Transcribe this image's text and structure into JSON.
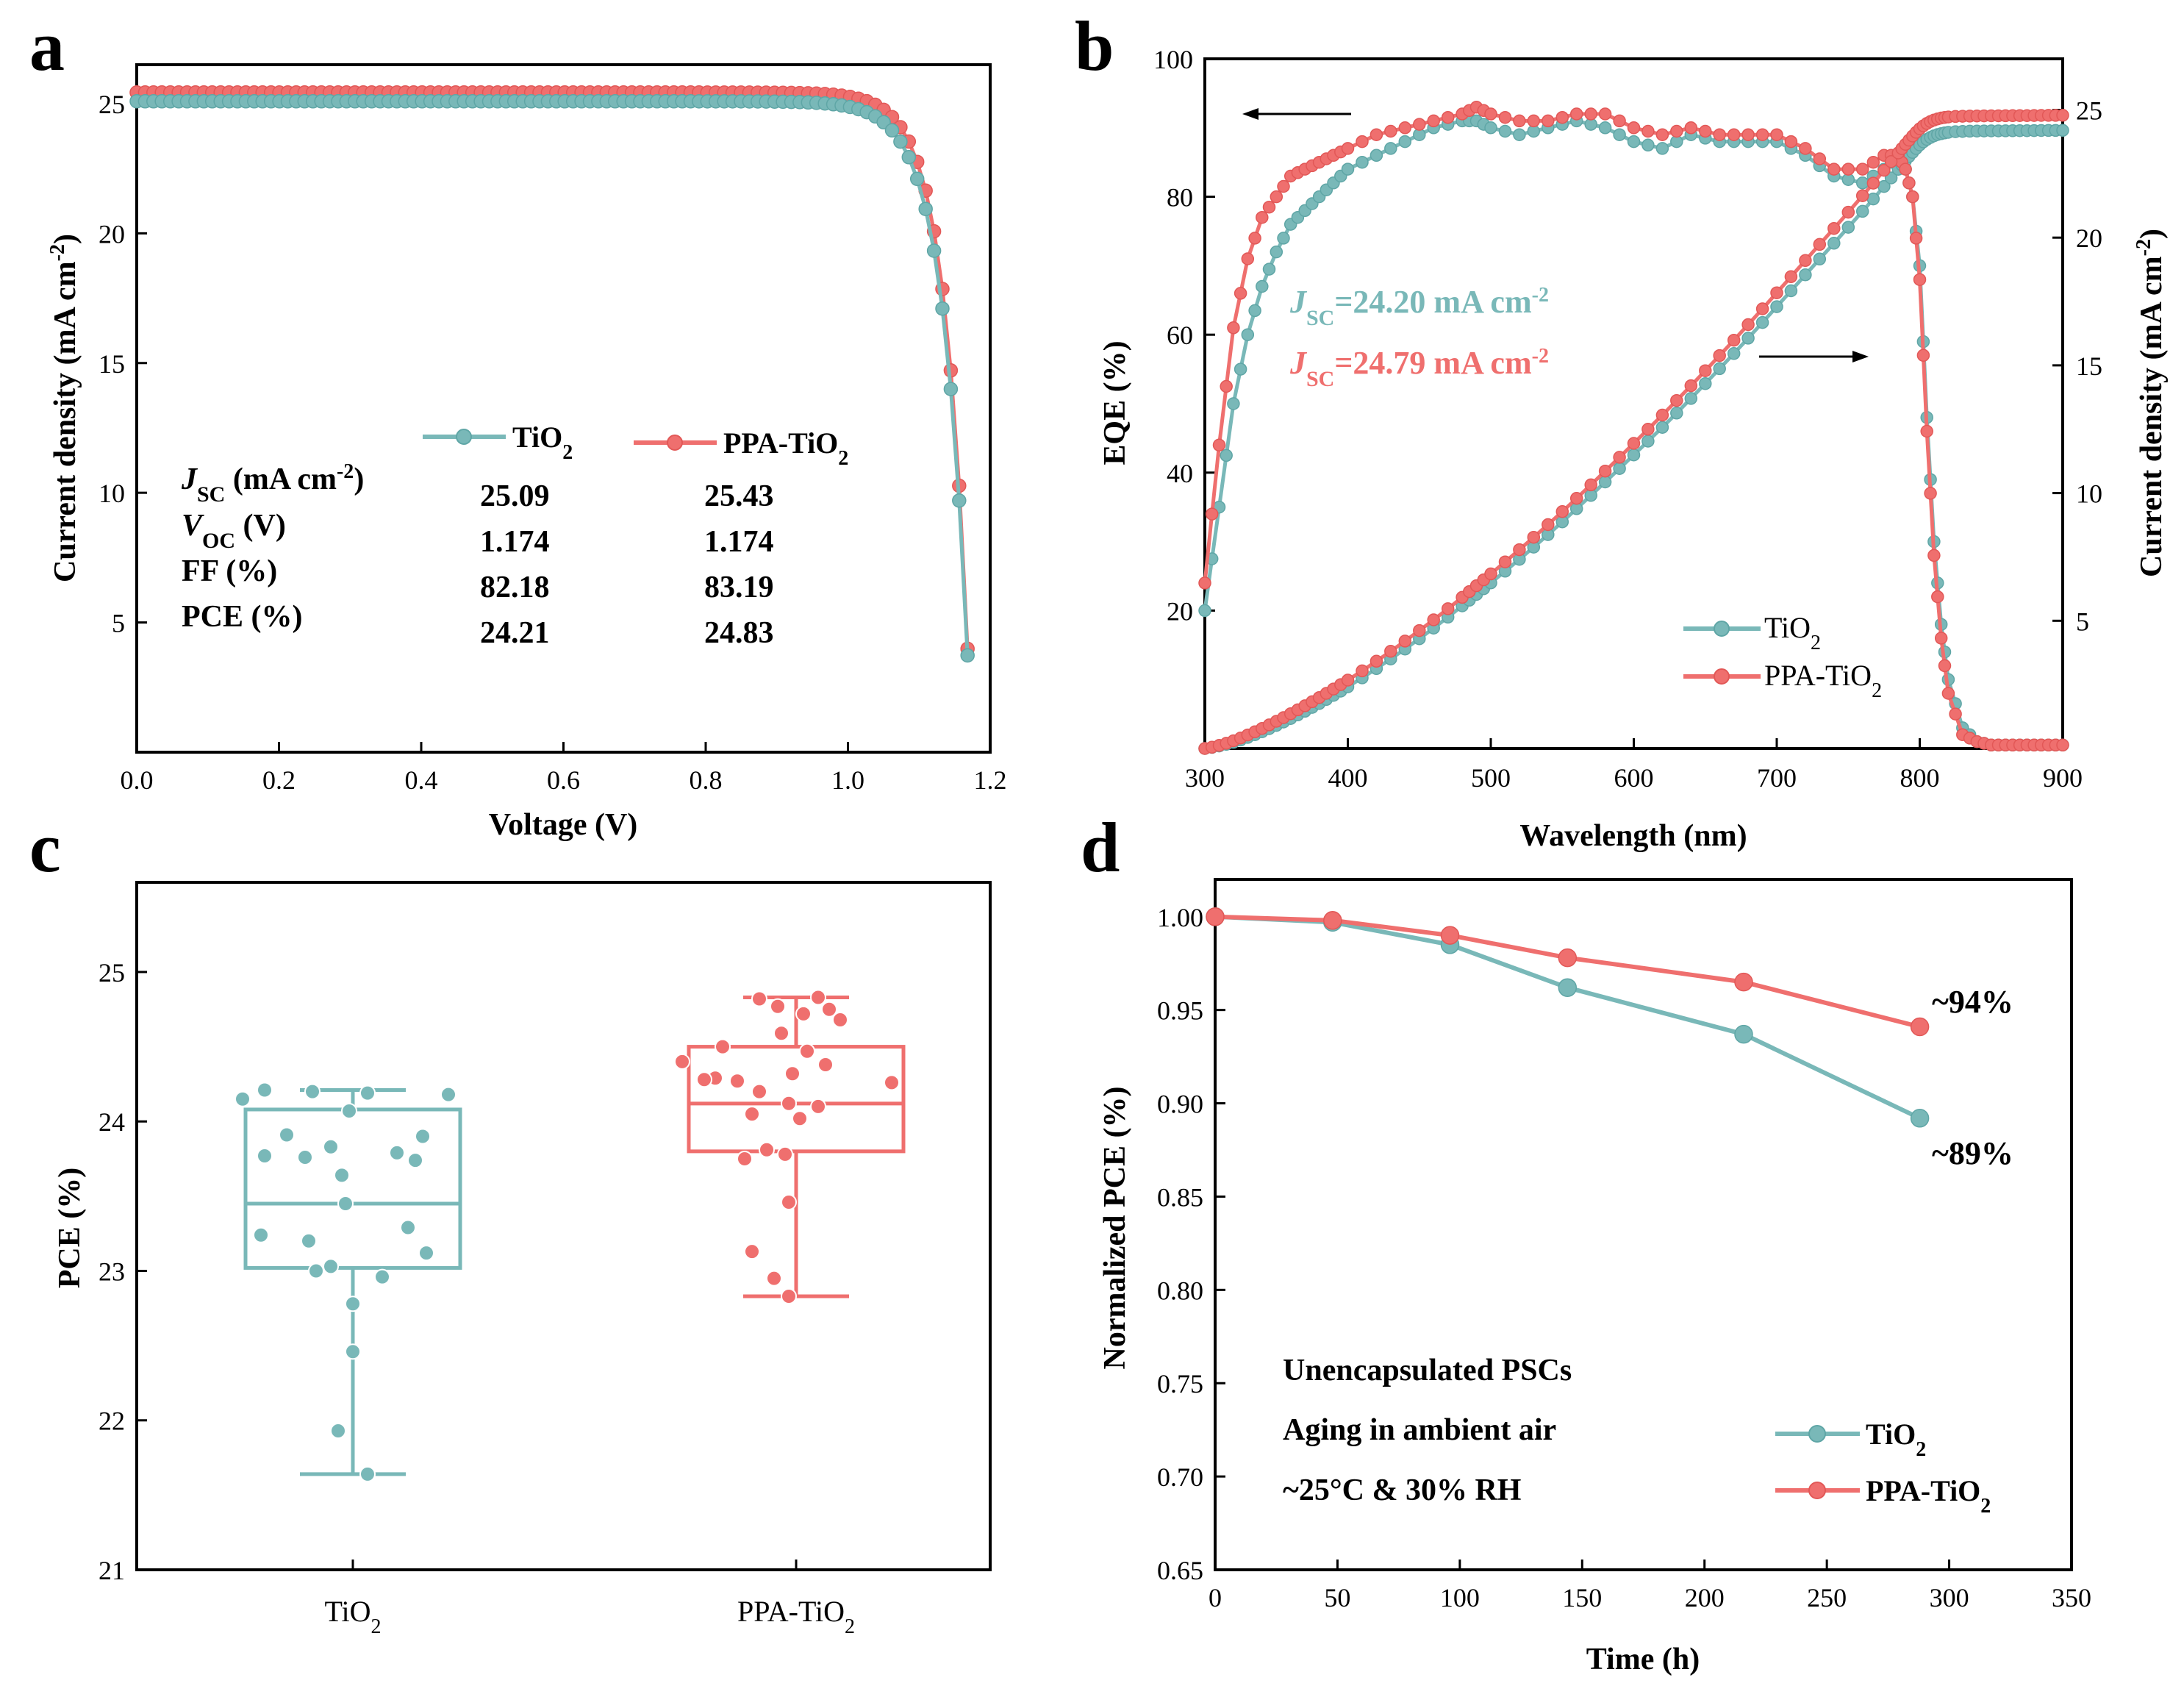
{
  "colors": {
    "tio2": "#79b8b8",
    "ppa": "#ef6f6e",
    "tio2_edge": "#5fa6a6",
    "ppa_edge": "#e25857"
  },
  "panels": {
    "a": "a",
    "b": "b",
    "c": "c",
    "d": "d"
  },
  "chart_data": [
    {
      "panel": "a",
      "type": "line",
      "title": "",
      "xlabel": "Voltage (V)",
      "ylabel": {
        "pre": "Current density (mA cm",
        "sup": "-2",
        "post": ")"
      },
      "xlim": [
        0,
        1.2
      ],
      "ylim": [
        0,
        26.5
      ],
      "xticks": [
        "0.0",
        "0.2",
        "0.4",
        "0.6",
        "0.8",
        "1.0",
        "1.2"
      ],
      "yticks": [
        "5",
        "10",
        "15",
        "20",
        "25"
      ],
      "legend": [
        {
          "text": "TiO",
          "sub": "2"
        },
        {
          "text": "PPA-TiO",
          "sub": "2"
        }
      ],
      "table": {
        "rows": [
          {
            "label": "J",
            "label_sub": "SC",
            "label_post": " (mA cm",
            "label_sup": "-2",
            "label_end": ")",
            "tio2": "25.09",
            "ppa": "25.43"
          },
          {
            "label": "V",
            "label_sub": "OC",
            "label_post": " (V)",
            "label_sup": "",
            "label_end": "",
            "tio2": "1.174",
            "ppa": "1.174"
          },
          {
            "label": "FF (%)",
            "label_sub": "",
            "label_post": "",
            "label_sup": "",
            "label_end": "",
            "tio2": "82.18",
            "ppa": "83.19"
          },
          {
            "label": "PCE (%)",
            "label_sub": "",
            "label_post": "",
            "label_sup": "",
            "label_end": "",
            "tio2": "24.21",
            "ppa": "24.83"
          }
        ]
      },
      "series": [
        {
          "name": "TiO2",
          "jsc": 25.09,
          "voc": 1.174,
          "ff": 82.18
        },
        {
          "name": "PPA-TiO2",
          "jsc": 25.43,
          "voc": 1.174,
          "ff": 83.19
        }
      ]
    },
    {
      "panel": "b",
      "type": "line",
      "xlabel": "Wavelength (nm)",
      "ylabel_left": "EQE (%)",
      "ylabel_right": {
        "pre": "Current density (mA cm",
        "sup": "-2",
        "post": ")"
      },
      "xlim": [
        300,
        900
      ],
      "ylim_left": [
        0,
        100
      ],
      "ylim_right": [
        0,
        27
      ],
      "xticks": [
        "300",
        "400",
        "500",
        "600",
        "700",
        "800",
        "900"
      ],
      "yticks_left": [
        "20",
        "40",
        "60",
        "80",
        "100"
      ],
      "yticks_right": [
        "5",
        "10",
        "15",
        "20",
        "25"
      ],
      "annotations": [
        {
          "pre": "J",
          "sub": "SC",
          "post": "=24.20 mA cm",
          "sup": "-2",
          "series": "TiO2"
        },
        {
          "pre": "J",
          "sub": "SC",
          "post": "=24.79 mA cm",
          "sup": "-2",
          "series": "PPA-TiO2"
        }
      ],
      "legend": [
        {
          "text": "TiO",
          "sub": "2"
        },
        {
          "text": "PPA-TiO",
          "sub": "2"
        }
      ],
      "wavelength": [
        300,
        310,
        320,
        330,
        340,
        350,
        360,
        370,
        380,
        390,
        400,
        420,
        440,
        460,
        480,
        490,
        500,
        520,
        540,
        560,
        580,
        600,
        620,
        640,
        660,
        680,
        700,
        720,
        740,
        760,
        775,
        785,
        790,
        795,
        800,
        805,
        810,
        815,
        820,
        830,
        840,
        850,
        860,
        870,
        880,
        890,
        900
      ],
      "series": [
        {
          "name": "TiO2",
          "eqe": [
            20,
            35,
            50,
            60,
            67,
            72,
            76,
            78,
            80,
            82,
            84,
            86,
            88,
            90,
            91,
            91,
            90,
            89,
            90,
            91,
            90,
            88,
            87,
            89,
            88,
            88,
            88,
            86,
            83,
            82,
            84,
            86,
            84,
            80,
            70,
            48,
            30,
            18,
            10,
            3,
            1,
            0.5,
            0.5,
            0.5,
            0.5,
            0.5,
            0.5
          ],
          "jsc_final": 24.2
        },
        {
          "name": "PPA-TiO2",
          "eqe": [
            24,
            44,
            61,
            71,
            77,
            80,
            83,
            84,
            85,
            86,
            87,
            89,
            90,
            91,
            92,
            93,
            92,
            91,
            91,
            92,
            92,
            90,
            89,
            90,
            89,
            89,
            89,
            87,
            84,
            84,
            86,
            86,
            84,
            80,
            68,
            46,
            28,
            16,
            8,
            2,
            1,
            0.5,
            0.5,
            0.5,
            0.5,
            0.5,
            0.5
          ],
          "jsc_final": 24.79
        }
      ]
    },
    {
      "panel": "c",
      "type": "box",
      "ylabel": "PCE (%)",
      "ylim": [
        21,
        25.6
      ],
      "yticks": [
        "21",
        "22",
        "23",
        "24",
        "25"
      ],
      "categories": [
        {
          "text": "TiO",
          "sub": "2"
        },
        {
          "text": "PPA-TiO",
          "sub": "2"
        }
      ],
      "series": [
        {
          "name": "TiO2",
          "whisker_low": 21.64,
          "q1": 23.02,
          "median": 23.45,
          "q3": 24.08,
          "whisker_high": 24.21,
          "points": [
            24.21,
            24.2,
            24.19,
            24.18,
            24.15,
            24.07,
            23.91,
            23.9,
            23.83,
            23.79,
            23.77,
            23.76,
            23.74,
            23.64,
            23.45,
            23.29,
            23.24,
            23.2,
            23.12,
            23.03,
            23.0,
            22.96,
            22.78,
            22.46,
            21.93,
            21.64
          ]
        },
        {
          "name": "PPA-TiO2",
          "whisker_low": 22.83,
          "q1": 23.8,
          "median": 24.12,
          "q3": 24.5,
          "whisker_high": 24.83,
          "points": [
            24.83,
            24.82,
            24.77,
            24.75,
            24.72,
            24.68,
            24.59,
            24.5,
            24.47,
            24.4,
            24.38,
            24.32,
            24.29,
            24.28,
            24.27,
            24.26,
            24.2,
            24.12,
            24.1,
            24.05,
            24.02,
            23.81,
            23.78,
            23.75,
            23.46,
            23.13,
            22.95,
            22.83
          ]
        }
      ]
    },
    {
      "panel": "d",
      "type": "line",
      "xlabel": "Time (h)",
      "ylabel": "Normalized PCE (%)",
      "xlim": [
        0,
        350
      ],
      "ylim": [
        0.65,
        1.02
      ],
      "xticks": [
        "0",
        "50",
        "100",
        "150",
        "200",
        "250",
        "300",
        "350"
      ],
      "yticks": [
        "0.65",
        "0.70",
        "0.75",
        "0.80",
        "0.85",
        "0.90",
        "0.95",
        "1.00"
      ],
      "annotations": [
        "Unencapsulated PSCs",
        "Aging in ambient air",
        "~25°C & 30% RH"
      ],
      "end_labels": {
        "ppa": "~94%",
        "tio2": "~89%"
      },
      "legend": [
        {
          "text": "TiO",
          "sub": "2"
        },
        {
          "text": "PPA-TiO",
          "sub": "2"
        }
      ],
      "x": [
        0,
        48,
        96,
        144,
        216,
        288
      ],
      "series": [
        {
          "name": "TiO2",
          "values": [
            1.0,
            0.997,
            0.985,
            0.962,
            0.937,
            0.892
          ]
        },
        {
          "name": "PPA-TiO2",
          "values": [
            1.0,
            0.998,
            0.99,
            0.978,
            0.965,
            0.941
          ]
        }
      ]
    }
  ]
}
